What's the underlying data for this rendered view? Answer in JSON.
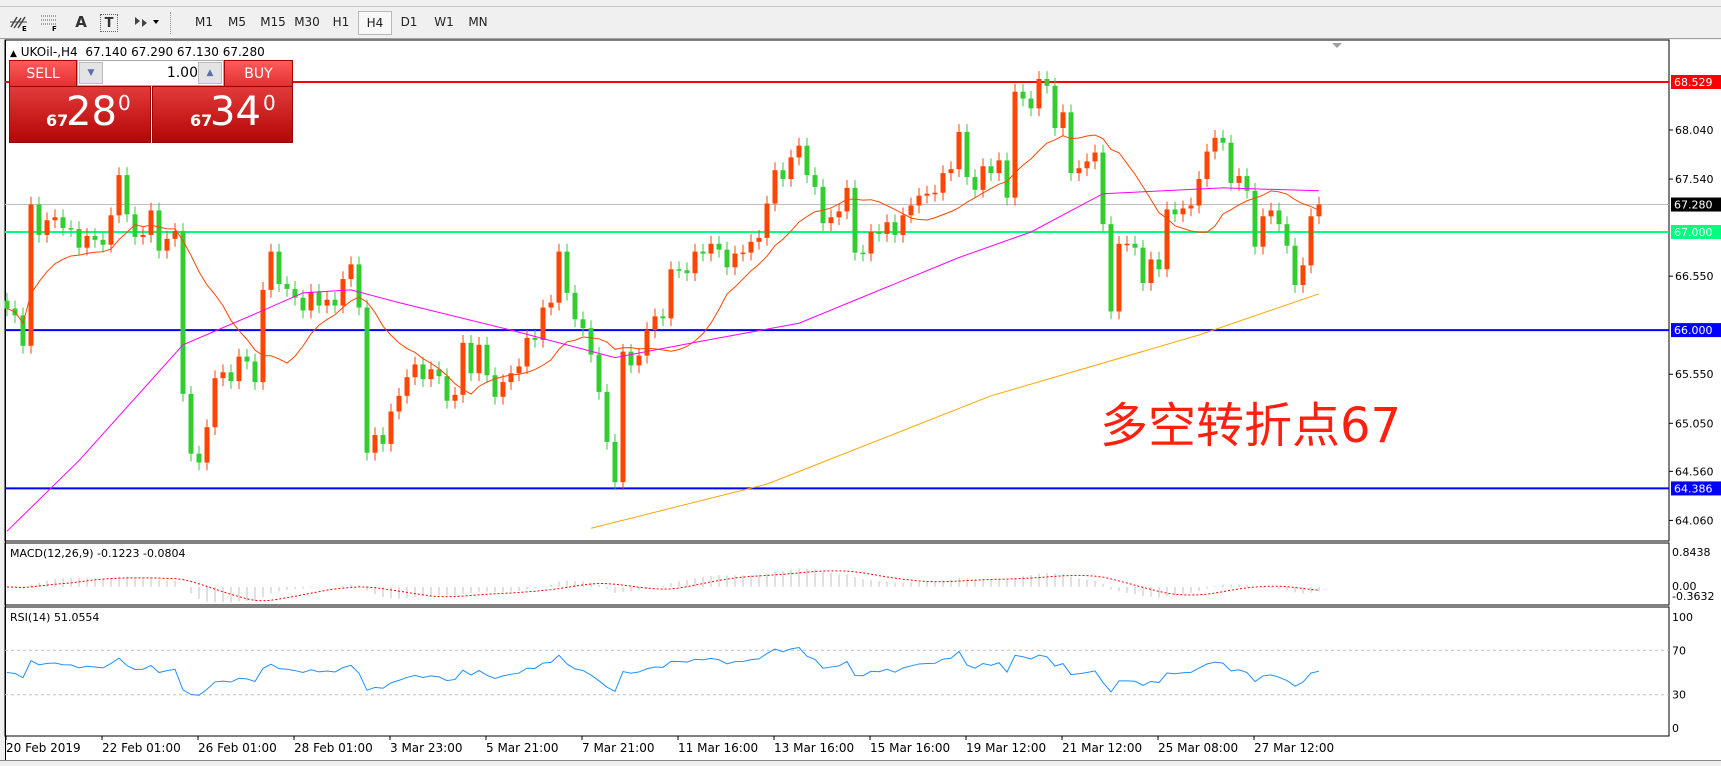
{
  "toolbar": {
    "icons": [
      "elliott-wave-icon",
      "fibonacci-icon",
      "text-icon",
      "text-label-icon",
      "arrows-icon"
    ],
    "icon_glyphs": {
      "text": "A",
      "label": "T"
    },
    "timeframes": [
      "M1",
      "M5",
      "M15",
      "M30",
      "H1",
      "H4",
      "D1",
      "W1",
      "MN"
    ],
    "selected_timeframe": "H4"
  },
  "chart": {
    "title": "UKOil-,H4",
    "ohlc": "67.140 67.290 67.130 67.280",
    "annotation": "多空转折点67"
  },
  "trade_panel": {
    "sell_label": "SELL",
    "buy_label": "BUY",
    "lot": "1.00",
    "sell_price": {
      "prefix": "67",
      "main": "28",
      "sup": "0"
    },
    "buy_price": {
      "prefix": "67",
      "main": "34",
      "sup": "0"
    }
  },
  "colors": {
    "bull_candle": "#ff4500",
    "bear_candle": "#32cd32",
    "fast_ma": "#ff4500",
    "mid_ma": "#ff00ff",
    "slow_ma": "#ffa500",
    "rsi_line": "#1e90ff",
    "macd_hist": "#c0c0c0",
    "macd_signal": "#ff0000"
  },
  "chart_data": {
    "type": "candlestick",
    "symbol": "UKOil-",
    "timeframe": "H4",
    "first_open": 66.3,
    "close": [
      66.22,
      66.15,
      65.84,
      67.28,
      66.97,
      67.12,
      67.15,
      67.04,
      67.03,
      66.84,
      66.96,
      66.92,
      66.87,
      67.17,
      67.58,
      67.18,
      66.95,
      66.97,
      67.22,
      66.81,
      66.93,
      67.01,
      65.35,
      64.74,
      64.65,
      65.01,
      65.51,
      65.57,
      65.48,
      65.73,
      65.68,
      65.47,
      66.41,
      66.8,
      66.47,
      66.42,
      66.33,
      66.2,
      66.39,
      66.25,
      66.31,
      66.25,
      66.52,
      66.67,
      66.23,
      64.75,
      64.93,
      64.84,
      65.17,
      65.33,
      65.52,
      65.65,
      65.5,
      65.6,
      65.53,
      65.28,
      65.34,
      65.87,
      65.56,
      65.85,
      65.54,
      65.32,
      65.47,
      65.56,
      65.63,
      65.92,
      65.9,
      66.23,
      66.28,
      66.8,
      66.38,
      66.11,
      66.02,
      65.75,
      65.37,
      64.86,
      64.45,
      65.78,
      65.64,
      65.74,
      66.0,
      66.14,
      66.12,
      66.62,
      66.61,
      66.58,
      66.8,
      66.78,
      66.88,
      66.82,
      66.64,
      66.78,
      66.79,
      66.9,
      66.94,
      67.29,
      67.63,
      67.54,
      67.76,
      67.88,
      67.58,
      67.46,
      67.09,
      67.15,
      67.21,
      67.45,
      66.79,
      66.78,
      67.0,
      66.98,
      67.1,
      66.97,
      67.17,
      67.27,
      67.37,
      67.39,
      67.4,
      67.6,
      67.64,
      68.02,
      67.56,
      67.43,
      67.67,
      67.6,
      67.73,
      67.35,
      68.43,
      68.36,
      68.26,
      68.56,
      68.49,
      68.06,
      68.22,
      67.6,
      67.65,
      67.72,
      67.81,
      67.08,
      66.19,
      66.88,
      66.88,
      66.84,
      66.48,
      66.72,
      66.62,
      67.23,
      67.18,
      67.24,
      67.27,
      67.54,
      67.82,
      67.96,
      67.91,
      67.5,
      67.57,
      67.42,
      66.85,
      67.16,
      67.22,
      67.08,
      66.86,
      66.46,
      66.66,
      67.16,
      67.28
    ],
    "mid_ma_points": [
      [
        0,
        63.95
      ],
      [
        9,
        64.67
      ],
      [
        22,
        65.85
      ],
      [
        32,
        66.2
      ],
      [
        37,
        66.38
      ],
      [
        43,
        66.41
      ],
      [
        49,
        66.28
      ],
      [
        63,
        66.0
      ],
      [
        76,
        65.72
      ],
      [
        87,
        65.89
      ],
      [
        99,
        66.07
      ],
      [
        119,
        66.74
      ],
      [
        128,
        67.0
      ],
      [
        137,
        67.39
      ],
      [
        152,
        67.45
      ],
      [
        164,
        67.42
      ]
    ],
    "slow_ma_points": [
      [
        73,
        63.98
      ],
      [
        95,
        64.43
      ],
      [
        123,
        65.33
      ],
      [
        149,
        65.95
      ],
      [
        164,
        66.37
      ]
    ],
    "levels": [
      {
        "price": "68.529",
        "color": "#ff0000",
        "label_bg": "#ff0000",
        "label_fg": "#ffffff"
      },
      {
        "price": "67.000",
        "color": "#00ff7f",
        "label_bg": "#00ff7f",
        "label_fg": "#ffffff"
      },
      {
        "price": "66.000",
        "color": "#0000ff",
        "label_bg": "#0000ff",
        "label_fg": "#ffffff"
      },
      {
        "price": "64.386",
        "color": "#0000ff",
        "label_bg": "#0000ff",
        "label_fg": "#ffffff"
      }
    ],
    "current_price": "67.280",
    "y_ticks": [
      "68.040",
      "67.540",
      "66.550",
      "65.550",
      "65.050",
      "64.560",
      "64.060"
    ],
    "x_ticks": [
      "20 Feb 2019",
      "22 Feb 01:00",
      "26 Feb 01:00",
      "28 Feb 01:00",
      "3 Mar 23:00",
      "5 Mar 21:00",
      "7 Mar 21:00",
      "11 Mar 16:00",
      "13 Mar 16:00",
      "15 Mar 16:00",
      "19 Mar 12:00",
      "21 Mar 12:00",
      "25 Mar 08:00",
      "27 Mar 12:00"
    ],
    "x_tick_every_bars": 12,
    "macd": {
      "label": "MACD(12,26,9) -0.1223 -0.0804",
      "ticks": [
        "0.8438",
        "0.00",
        "-0.3632"
      ],
      "range": [
        -0.3632,
        0.8438
      ]
    },
    "rsi": {
      "label": "RSI(14) 51.0554",
      "ticks": [
        "100",
        "70",
        "30",
        "0"
      ],
      "levels": [
        70,
        30
      ]
    }
  }
}
